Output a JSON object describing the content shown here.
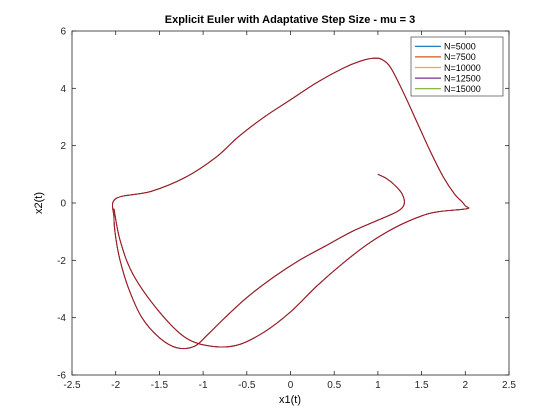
{
  "chart_data": {
    "type": "line",
    "title": "Explicit Euler with Adaptative Step Size - mu = 3",
    "xlabel": "x1(t)",
    "ylabel": "x2(t)",
    "xlim": [
      -2.5,
      2.5
    ],
    "ylim": [
      -6,
      6
    ],
    "xticks": [
      -2.5,
      -2,
      -1.5,
      -1,
      -0.5,
      0,
      0.5,
      1,
      1.5,
      2,
      2.5
    ],
    "yticks": [
      -6,
      -4,
      -2,
      0,
      2,
      4,
      6
    ],
    "xtick_labels": [
      "-2.5",
      "-2",
      "-1.5",
      "-1",
      "-0.5",
      "0",
      "0.5",
      "1",
      "1.5",
      "2",
      "2.5"
    ],
    "ytick_labels": [
      "-6",
      "-4",
      "-2",
      "0",
      "2",
      "4",
      "6"
    ],
    "grid": false,
    "legend_position": "top-right",
    "series": [
      {
        "name": "N=5000",
        "color": "#0072bd"
      },
      {
        "name": "N=7500",
        "color": "#d95319"
      },
      {
        "name": "N=10000",
        "color": "#edb120"
      },
      {
        "name": "N=12500",
        "color": "#7e2f8e"
      },
      {
        "name": "N=15000",
        "color": "#77ac30"
      }
    ],
    "visible_trace_color": "#a2142f",
    "trajectory": {
      "x": [
        1.0,
        1.1,
        1.2,
        1.28,
        1.3,
        1.22,
        1.0,
        0.7,
        0.4,
        0.1,
        -0.2,
        -0.5,
        -0.75,
        -0.95,
        -1.1,
        -1.3,
        -1.5,
        -1.7,
        -1.85,
        -1.95,
        -2.0,
        -2.02,
        -2.0,
        -1.6,
        -1.2,
        -0.85,
        -0.6,
        -0.3,
        0.0,
        0.3,
        0.6,
        0.8,
        0.95,
        1.05,
        1.15,
        1.3,
        1.45,
        1.6,
        1.75,
        1.88,
        1.96,
        2.0,
        2.02,
        1.7,
        1.5,
        1.2,
        0.9,
        0.6,
        0.3,
        0.0,
        -0.3,
        -0.6,
        -0.9,
        -1.2,
        -1.5,
        -1.8,
        -1.95,
        -2.02
      ],
      "y": [
        1.0,
        0.85,
        0.6,
        0.3,
        -0.05,
        -0.3,
        -0.6,
        -1.0,
        -1.5,
        -2.0,
        -2.6,
        -3.3,
        -4.0,
        -4.6,
        -5.0,
        -5.05,
        -4.7,
        -4.0,
        -3.0,
        -2.0,
        -1.2,
        -0.5,
        0.15,
        0.4,
        0.9,
        1.6,
        2.3,
        3.0,
        3.6,
        4.2,
        4.7,
        4.95,
        5.05,
        5.0,
        4.7,
        3.8,
        2.8,
        1.8,
        0.9,
        0.3,
        0.05,
        -0.1,
        -0.2,
        -0.3,
        -0.45,
        -0.85,
        -1.4,
        -2.1,
        -2.9,
        -3.8,
        -4.5,
        -4.95,
        -5.0,
        -4.7,
        -3.8,
        -2.5,
        -1.3,
        -0.2
      ]
    }
  }
}
